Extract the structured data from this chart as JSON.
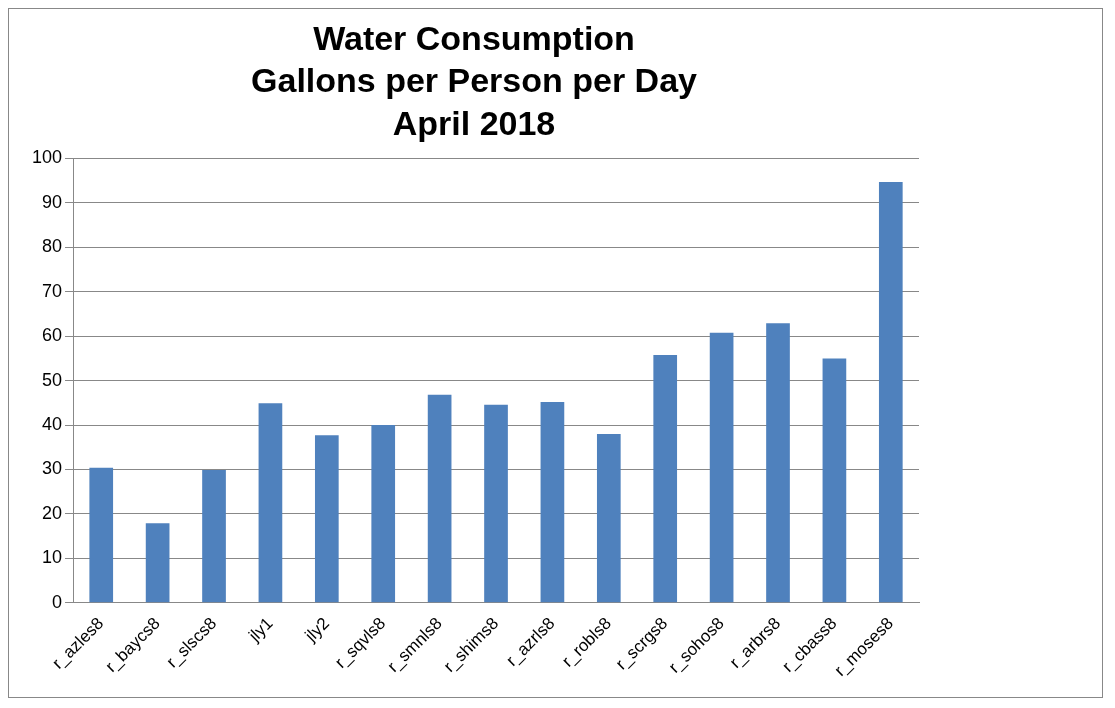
{
  "chart_data": {
    "type": "bar",
    "title": "Water Consumption\nGallons per Person per Day\nApril 2018",
    "categories": [
      "r_azles8",
      "r_baycs8",
      "r_slscs8",
      "jly1",
      "jly2",
      "r_sqvls8",
      "r_smnls8",
      "r_shims8",
      "r_azrls8",
      "r_robls8",
      "r_scrgs8",
      "r_sohos8",
      "r_arbrs8",
      "r_cbass8",
      "r_moses8"
    ],
    "values": [
      30.4,
      17.9,
      29.9,
      44.9,
      37.7,
      40.0,
      46.8,
      44.6,
      45.2,
      38.0,
      55.8,
      60.8,
      62.9,
      55.0,
      94.7
    ],
    "color": "#4f81bd",
    "ylim": [
      0,
      100
    ],
    "yticks": [
      0,
      10,
      20,
      30,
      40,
      50,
      60,
      70,
      80,
      90,
      100
    ],
    "grid": "y",
    "legend": false
  }
}
